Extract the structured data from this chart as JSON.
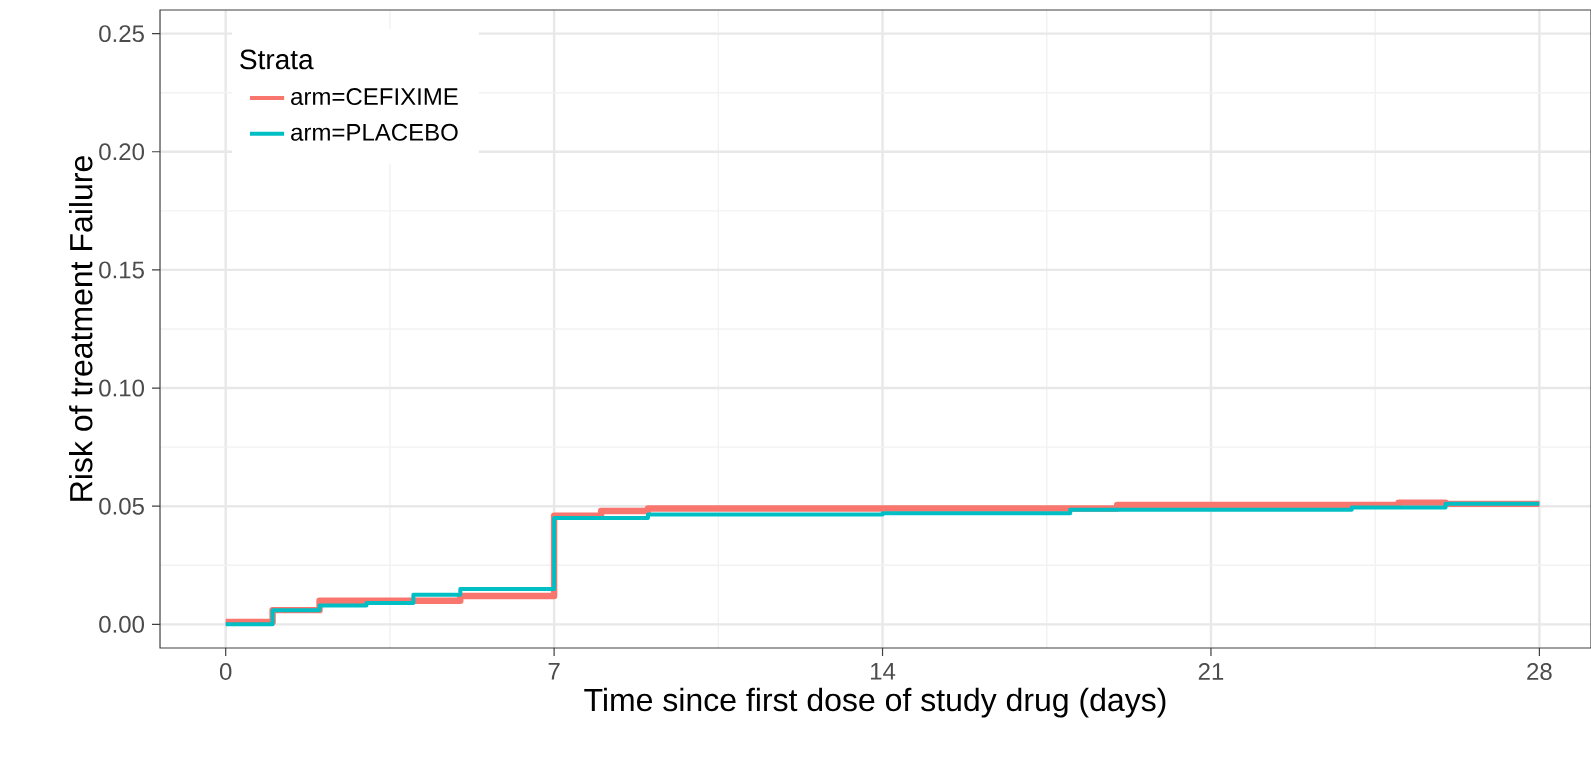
{
  "chart_data": {
    "type": "step",
    "xlabel": "Time since first dose of study drug (days)",
    "ylabel": "Risk of treatment Failure",
    "legend_title": "Strata",
    "series": [
      {
        "name": "arm=CEFIXIME",
        "color": "#f8766d",
        "x": [
          0,
          1,
          2,
          4,
          5,
          7,
          8,
          9,
          19,
          25,
          26,
          28
        ],
        "values": [
          0.001,
          0.006,
          0.01,
          0.01,
          0.012,
          0.046,
          0.048,
          0.049,
          0.0505,
          0.0515,
          0.051,
          0.051
        ]
      },
      {
        "name": "arm=PLACEBO",
        "color": "#00bfc4",
        "x": [
          0,
          1,
          2,
          3,
          4,
          5,
          7,
          9,
          14,
          18,
          24,
          26,
          28
        ],
        "values": [
          0.0,
          0.006,
          0.008,
          0.009,
          0.0125,
          0.015,
          0.045,
          0.0465,
          0.047,
          0.0485,
          0.0495,
          0.051,
          0.051
        ]
      }
    ],
    "xlim": [
      -1.4,
      29.1
    ],
    "ylim": [
      -0.01,
      0.26
    ],
    "xticks": [
      0,
      7,
      14,
      21,
      28
    ],
    "yticks": [
      {
        "value": 0,
        "label": "0.00"
      },
      {
        "value": 0.05,
        "label": "0.05"
      },
      {
        "value": 0.1,
        "label": "0.10"
      },
      {
        "value": 0.15,
        "label": "0.15"
      },
      {
        "value": 0.2,
        "label": "0.20"
      },
      {
        "value": 0.25,
        "label": "0.25"
      }
    ],
    "grid": true,
    "legend": "top left",
    "line_style": "solid"
  }
}
